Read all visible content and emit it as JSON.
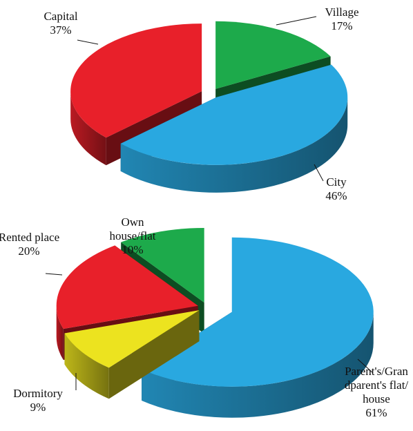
{
  "chart_data": [
    {
      "type": "pie3d",
      "categories": [
        "Village",
        "City",
        "Capital"
      ],
      "values": [
        17,
        46,
        37
      ],
      "value_labels": [
        "17%",
        "46%",
        "37%"
      ],
      "colors": [
        "#1daa4b",
        "#29a8e0",
        "#e8202a"
      ]
    },
    {
      "type": "pie3d",
      "categories": [
        "Parent's/Grandparent's flat/house",
        "Dormitory",
        "Rented place",
        "Own house/flat"
      ],
      "values": [
        61,
        9,
        20,
        10
      ],
      "value_labels": [
        "61%",
        "9%",
        "20%",
        "10%"
      ],
      "colors": [
        "#29a8e0",
        "#ece31f",
        "#e8202a",
        "#1daa4b"
      ]
    }
  ]
}
